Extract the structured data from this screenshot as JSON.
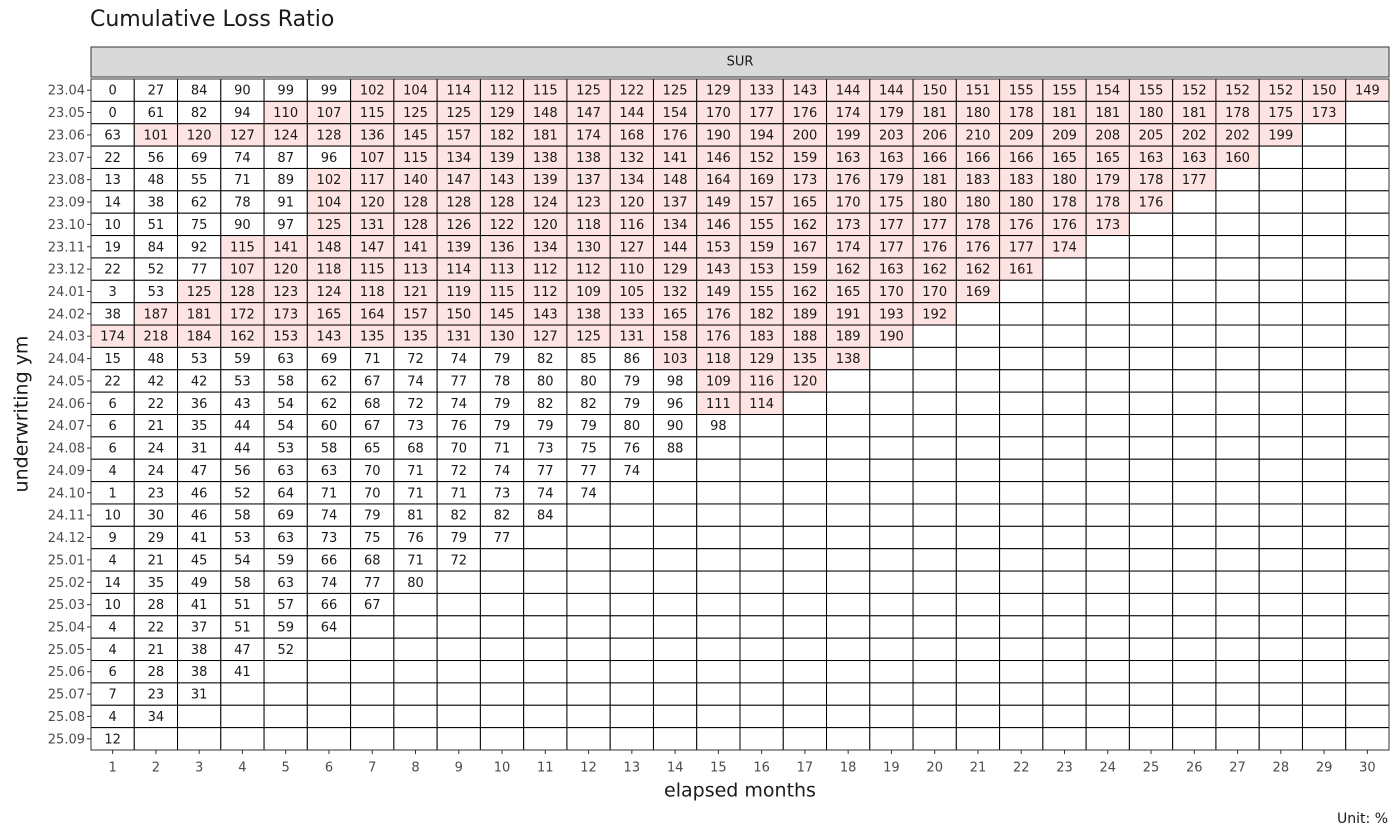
{
  "chart_data": {
    "type": "heatmap",
    "title": "Cumulative Loss Ratio",
    "facet": "SUR",
    "x_label": "elapsed months",
    "y_label": "underwriting ym",
    "caption": "Unit: %",
    "highlight_threshold": 100,
    "highlight_color": "#fde3e1",
    "color": "#ffffff",
    "x_categories": [
      1,
      2,
      3,
      4,
      5,
      6,
      7,
      8,
      9,
      10,
      11,
      12,
      13,
      14,
      15,
      16,
      17,
      18,
      19,
      20,
      21,
      22,
      23,
      24,
      25,
      26,
      27,
      28,
      29,
      30
    ],
    "y_categories": [
      "23.04",
      "23.05",
      "23.06",
      "23.07",
      "23.08",
      "23.09",
      "23.10",
      "23.11",
      "23.12",
      "24.01",
      "24.02",
      "24.03",
      "24.04",
      "24.05",
      "24.06",
      "24.07",
      "24.08",
      "24.09",
      "24.10",
      "24.11",
      "24.12",
      "25.01",
      "25.02",
      "25.03",
      "25.04",
      "25.05",
      "25.06",
      "25.07",
      "25.08",
      "25.09"
    ],
    "values": [
      [
        0,
        27,
        84,
        90,
        99,
        99,
        102,
        104,
        114,
        112,
        115,
        125,
        122,
        125,
        129,
        133,
        143,
        144,
        144,
        150,
        151,
        155,
        155,
        154,
        155,
        152,
        152,
        152,
        150,
        149
      ],
      [
        0,
        61,
        82,
        94,
        110,
        107,
        115,
        125,
        125,
        129,
        148,
        147,
        144,
        154,
        170,
        177,
        176,
        174,
        179,
        181,
        180,
        178,
        181,
        181,
        180,
        181,
        178,
        175,
        173
      ],
      [
        63,
        101,
        120,
        127,
        124,
        128,
        136,
        145,
        157,
        182,
        181,
        174,
        168,
        176,
        190,
        194,
        200,
        199,
        203,
        206,
        210,
        209,
        209,
        208,
        205,
        202,
        202,
        199
      ],
      [
        22,
        56,
        69,
        74,
        87,
        96,
        107,
        115,
        134,
        139,
        138,
        138,
        132,
        141,
        146,
        152,
        159,
        163,
        163,
        166,
        166,
        166,
        165,
        165,
        163,
        163,
        160
      ],
      [
        13,
        48,
        55,
        71,
        89,
        102,
        117,
        140,
        147,
        143,
        139,
        137,
        134,
        148,
        164,
        169,
        173,
        176,
        179,
        181,
        183,
        183,
        180,
        179,
        178,
        177
      ],
      [
        14,
        38,
        62,
        78,
        91,
        104,
        120,
        128,
        128,
        128,
        124,
        123,
        120,
        137,
        149,
        157,
        165,
        170,
        175,
        180,
        180,
        180,
        178,
        178,
        176
      ],
      [
        10,
        51,
        75,
        90,
        97,
        125,
        131,
        128,
        126,
        122,
        120,
        118,
        116,
        134,
        146,
        155,
        162,
        173,
        177,
        177,
        178,
        176,
        176,
        173
      ],
      [
        19,
        84,
        92,
        115,
        141,
        148,
        147,
        141,
        139,
        136,
        134,
        130,
        127,
        144,
        153,
        159,
        167,
        174,
        177,
        176,
        176,
        177,
        174
      ],
      [
        22,
        52,
        77,
        107,
        120,
        118,
        115,
        113,
        114,
        113,
        112,
        112,
        110,
        129,
        143,
        153,
        159,
        162,
        163,
        162,
        162,
        161
      ],
      [
        3,
        53,
        125,
        128,
        123,
        124,
        118,
        121,
        119,
        115,
        112,
        109,
        105,
        132,
        149,
        155,
        162,
        165,
        170,
        170,
        169
      ],
      [
        38,
        187,
        181,
        172,
        173,
        165,
        164,
        157,
        150,
        145,
        143,
        138,
        133,
        165,
        176,
        182,
        189,
        191,
        193,
        192
      ],
      [
        174,
        218,
        184,
        162,
        153,
        143,
        135,
        135,
        131,
        130,
        127,
        125,
        131,
        158,
        176,
        183,
        188,
        189,
        190
      ],
      [
        15,
        48,
        53,
        59,
        63,
        69,
        71,
        72,
        74,
        79,
        82,
        85,
        86,
        103,
        118,
        129,
        135,
        138
      ],
      [
        22,
        42,
        42,
        53,
        58,
        62,
        67,
        74,
        77,
        78,
        80,
        80,
        79,
        98,
        109,
        116,
        120
      ],
      [
        6,
        22,
        36,
        43,
        54,
        62,
        68,
        72,
        74,
        79,
        82,
        82,
        79,
        96,
        111,
        114
      ],
      [
        6,
        21,
        35,
        44,
        54,
        60,
        67,
        73,
        76,
        79,
        79,
        79,
        80,
        90,
        98
      ],
      [
        6,
        24,
        31,
        44,
        53,
        58,
        65,
        68,
        70,
        71,
        73,
        75,
        76,
        88
      ],
      [
        4,
        24,
        47,
        56,
        63,
        63,
        70,
        71,
        72,
        74,
        77,
        77,
        74
      ],
      [
        1,
        23,
        46,
        52,
        64,
        71,
        70,
        71,
        71,
        73,
        74,
        74
      ],
      [
        10,
        30,
        46,
        58,
        69,
        74,
        79,
        81,
        82,
        82,
        84
      ],
      [
        9,
        29,
        41,
        53,
        63,
        73,
        75,
        76,
        79,
        77
      ],
      [
        4,
        21,
        45,
        54,
        59,
        66,
        68,
        71,
        72
      ],
      [
        14,
        35,
        49,
        58,
        63,
        74,
        77,
        80
      ],
      [
        10,
        28,
        41,
        51,
        57,
        66,
        67
      ],
      [
        4,
        22,
        37,
        51,
        59,
        64
      ],
      [
        4,
        21,
        38,
        47,
        52
      ],
      [
        6,
        28,
        38,
        41
      ],
      [
        7,
        23,
        31
      ],
      [
        4,
        34
      ],
      [
        12
      ]
    ]
  }
}
